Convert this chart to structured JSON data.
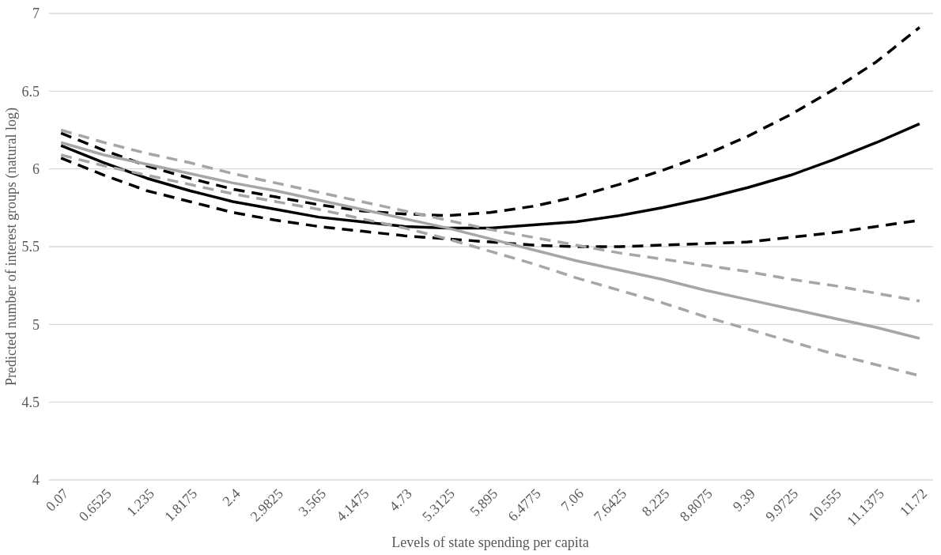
{
  "chart_data": {
    "type": "line",
    "xlabel": "Levels of state spending per capita",
    "ylabel": "Predicted number of interest groups (natural log)",
    "categories": [
      "0.07",
      "0.6525",
      "1.235",
      "1.8175",
      "2.4",
      "2.9825",
      "3.565",
      "4.1475",
      "4.73",
      "5.3125",
      "5.895",
      "6.4775",
      "7.06",
      "7.6425",
      "8.225",
      "8.8075",
      "9.39",
      "9.9725",
      "10.555",
      "11.1375",
      "11.72"
    ],
    "ylim": [
      4,
      7
    ],
    "yticks": [
      4,
      4.5,
      5,
      5.5,
      6,
      6.5,
      7
    ],
    "grid": "y",
    "series": [
      {
        "color": "#000000",
        "line_style": "solid",
        "values": [
          6.15,
          6.04,
          5.94,
          5.86,
          5.79,
          5.74,
          5.69,
          5.66,
          5.63,
          5.62,
          5.62,
          5.64,
          5.66,
          5.7,
          5.75,
          5.81,
          5.88,
          5.96,
          6.06,
          6.17,
          6.29
        ]
      },
      {
        "color": "#000000",
        "line_style": "dashed",
        "values": [
          6.23,
          6.12,
          6.02,
          5.94,
          5.87,
          5.82,
          5.77,
          5.73,
          5.71,
          5.7,
          5.72,
          5.76,
          5.82,
          5.9,
          5.99,
          6.09,
          6.21,
          6.35,
          6.51,
          6.69,
          6.91
        ]
      },
      {
        "color": "#000000",
        "line_style": "dashed",
        "values": [
          6.07,
          5.96,
          5.86,
          5.79,
          5.72,
          5.67,
          5.63,
          5.6,
          5.57,
          5.55,
          5.53,
          5.51,
          5.5,
          5.5,
          5.51,
          5.52,
          5.53,
          5.56,
          5.59,
          5.63,
          5.67
        ]
      },
      {
        "color": "#a6a6a6",
        "line_style": "solid",
        "values": [
          6.17,
          6.09,
          6.03,
          5.97,
          5.91,
          5.86,
          5.8,
          5.74,
          5.68,
          5.62,
          5.55,
          5.48,
          5.41,
          5.35,
          5.29,
          5.22,
          5.16,
          5.1,
          5.04,
          4.98,
          4.91
        ]
      },
      {
        "color": "#a6a6a6",
        "line_style": "dashed",
        "values": [
          6.25,
          6.17,
          6.1,
          6.04,
          5.97,
          5.91,
          5.85,
          5.79,
          5.73,
          5.67,
          5.61,
          5.56,
          5.51,
          5.46,
          5.42,
          5.38,
          5.34,
          5.29,
          5.25,
          5.2,
          5.15
        ]
      },
      {
        "color": "#a6a6a6",
        "line_style": "dashed",
        "values": [
          6.09,
          6.02,
          5.96,
          5.9,
          5.84,
          5.79,
          5.74,
          5.68,
          5.62,
          5.55,
          5.47,
          5.39,
          5.3,
          5.22,
          5.14,
          5.05,
          4.97,
          4.89,
          4.81,
          4.74,
          4.67
        ]
      }
    ]
  }
}
